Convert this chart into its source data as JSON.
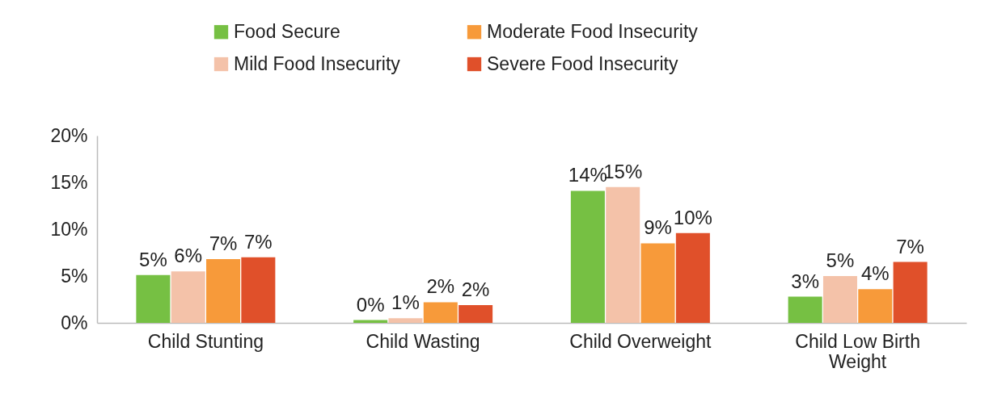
{
  "chart_data": {
    "type": "bar",
    "categories": [
      "Child Stunting",
      "Child Wasting",
      "Child Overweight",
      "Child Low Birth Weight"
    ],
    "series": [
      {
        "name": "Food Secure",
        "color": "#76c043",
        "values": [
          5.1,
          0.3,
          14.1,
          2.8
        ],
        "value_labels": [
          "5%",
          "0%",
          "14%",
          "3%"
        ]
      },
      {
        "name": "Mild Food Insecurity",
        "color": "#f4c2a9",
        "values": [
          5.5,
          0.5,
          14.5,
          5.0
        ],
        "value_labels": [
          "6%",
          "1%",
          "15%",
          "5%"
        ]
      },
      {
        "name": "Moderate Food Insecurity",
        "color": "#f79a3a",
        "values": [
          6.8,
          2.2,
          8.5,
          3.6
        ],
        "value_labels": [
          "7%",
          "2%",
          "9%",
          "4%"
        ]
      },
      {
        "name": "Severe Food Insecurity",
        "color": "#e0502a",
        "values": [
          7.0,
          1.9,
          9.6,
          6.5
        ],
        "value_labels": [
          "7%",
          "2%",
          "10%",
          "7%"
        ]
      }
    ],
    "ylim": [
      0,
      20
    ],
    "yticks": [
      {
        "value": 0,
        "label": "0%"
      },
      {
        "value": 5,
        "label": "5%"
      },
      {
        "value": 10,
        "label": "10%"
      },
      {
        "value": 15,
        "label": "15%"
      },
      {
        "value": 20,
        "label": "20%"
      }
    ],
    "grid": false,
    "legend": "top"
  }
}
